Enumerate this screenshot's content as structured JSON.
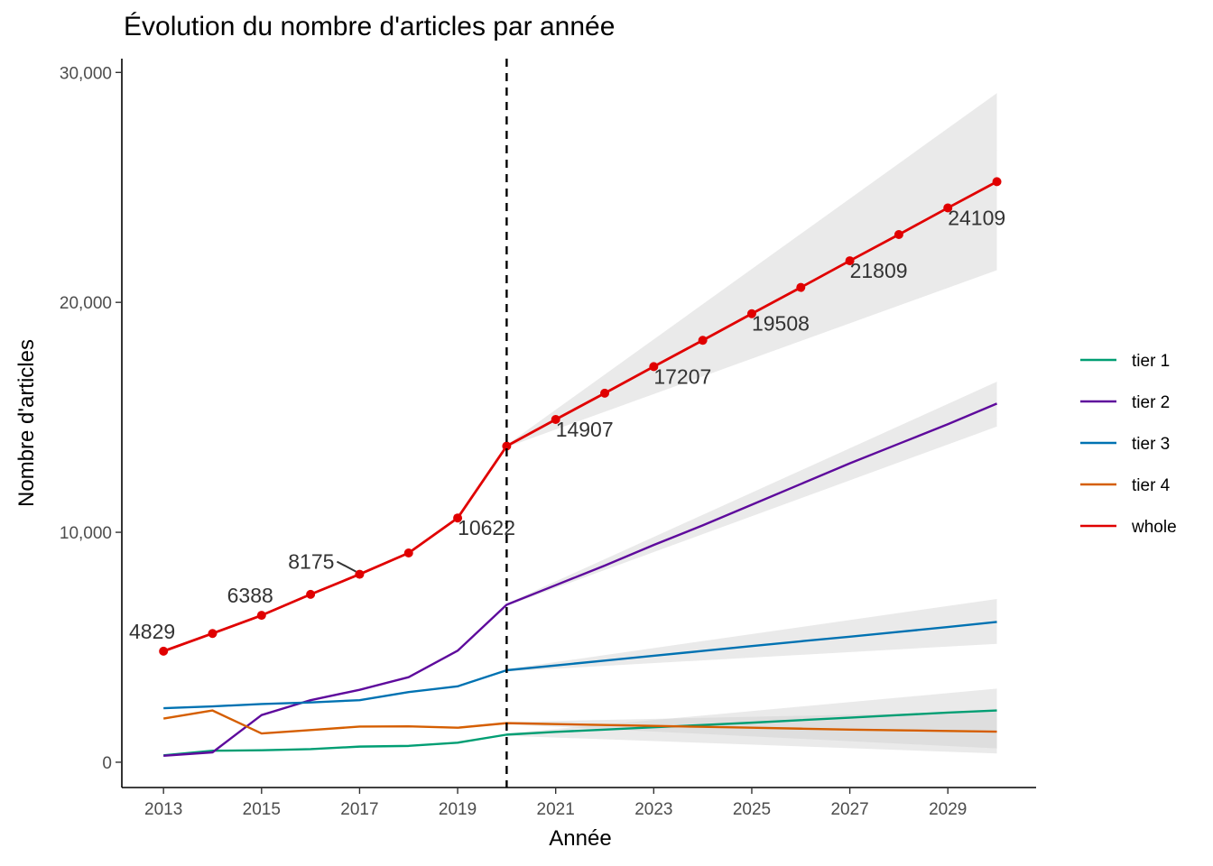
{
  "chart_data": {
    "type": "line",
    "title": "Évolution du nombre d'articles par année",
    "xlabel": "Année",
    "ylabel": "Nombre d'articles",
    "xlim": [
      2012.15,
      2030.8
    ],
    "ylim": [
      -1100,
      30600
    ],
    "x_ticks": [
      2013,
      2015,
      2017,
      2019,
      2021,
      2023,
      2025,
      2027,
      2029
    ],
    "x_tick_labels": [
      "2013",
      "2015",
      "2017",
      "2019",
      "2021",
      "2023",
      "2025",
      "2027",
      "2029"
    ],
    "y_ticks": [
      0,
      10000,
      20000,
      30000
    ],
    "y_tick_labels": [
      "0",
      "10,000",
      "20,000",
      "30,000"
    ],
    "vline_x": 2020,
    "grid": false,
    "legend_position": "right",
    "series": [
      {
        "name": "tier 1",
        "color": "#009e73",
        "x": [
          2013,
          2014,
          2015,
          2016,
          2017,
          2018,
          2019,
          2020,
          2021,
          2022,
          2023,
          2024,
          2025,
          2026,
          2027,
          2028,
          2029,
          2030
        ],
        "values": [
          300,
          500,
          520,
          570,
          680,
          710,
          850,
          1200,
          1320,
          1420,
          1520,
          1620,
          1720,
          1830,
          1940,
          2050,
          2160,
          2250
        ],
        "band": {
          "x": [
            2020,
            2030
          ],
          "lower": [
            1150,
            380
          ],
          "upper": [
            1250,
            3200
          ]
        }
      },
      {
        "name": "tier 2",
        "color": "#5e0a9c",
        "x": [
          2013,
          2014,
          2015,
          2016,
          2017,
          2018,
          2019,
          2020,
          2021,
          2022,
          2023,
          2024,
          2025,
          2026,
          2027,
          2028,
          2029,
          2030
        ],
        "values": [
          280,
          430,
          2050,
          2700,
          3150,
          3700,
          4850,
          6850,
          7700,
          8550,
          9450,
          10300,
          11200,
          12100,
          13000,
          13850,
          14700,
          15600
        ],
        "band": {
          "x": [
            2020,
            2030
          ],
          "lower": [
            6800,
            14600
          ],
          "upper": [
            6900,
            16550
          ]
        }
      },
      {
        "name": "tier 3",
        "color": "#0072b2",
        "x": [
          2013,
          2014,
          2015,
          2016,
          2017,
          2018,
          2019,
          2020,
          2021,
          2022,
          2023,
          2024,
          2025,
          2026,
          2027,
          2028,
          2029,
          2030
        ],
        "values": [
          2350,
          2430,
          2530,
          2600,
          2700,
          3050,
          3300,
          4000,
          4210,
          4420,
          4630,
          4840,
          5050,
          5260,
          5460,
          5670,
          5880,
          6100
        ],
        "band": {
          "x": [
            2020,
            2030
          ],
          "lower": [
            3950,
            5150
          ],
          "upper": [
            4050,
            7100
          ]
        }
      },
      {
        "name": "tier 4",
        "color": "#d55e00",
        "x": [
          2013,
          2014,
          2015,
          2016,
          2017,
          2018,
          2019,
          2020,
          2021,
          2022,
          2023,
          2024,
          2025,
          2026,
          2027,
          2028,
          2029,
          2030
        ],
        "values": [
          1900,
          2250,
          1250,
          1400,
          1550,
          1560,
          1500,
          1700,
          1660,
          1620,
          1580,
          1540,
          1500,
          1460,
          1420,
          1390,
          1360,
          1330
        ],
        "band": {
          "x": [
            2020,
            2030
          ],
          "lower": [
            1650,
            600
          ],
          "upper": [
            1750,
            2200
          ]
        }
      },
      {
        "name": "whole",
        "color": "#e00000",
        "x": [
          2013,
          2014,
          2015,
          2016,
          2017,
          2018,
          2019,
          2020,
          2021,
          2022,
          2023,
          2024,
          2025,
          2026,
          2027,
          2028,
          2029,
          2030
        ],
        "values": [
          4829,
          5600,
          6388,
          7300,
          8175,
          9100,
          10622,
          13750,
          14907,
          16050,
          17207,
          18350,
          19508,
          20650,
          21809,
          22950,
          24109,
          25250
        ],
        "band": {
          "x": [
            2020,
            2030
          ],
          "lower": [
            13700,
            21400
          ],
          "upper": [
            13800,
            29100
          ]
        }
      }
    ],
    "point_labels": [
      {
        "x": 2013,
        "value": 4829,
        "text": "4829"
      },
      {
        "x": 2015,
        "value": 6388,
        "text": "6388"
      },
      {
        "x": 2017,
        "value": 8175,
        "text": "8175"
      },
      {
        "x": 2019,
        "value": 10622,
        "text": "10622"
      },
      {
        "x": 2021,
        "value": 14907,
        "text": "14907"
      },
      {
        "x": 2023,
        "value": 17207,
        "text": "17207"
      },
      {
        "x": 2025,
        "value": 19508,
        "text": "19508"
      },
      {
        "x": 2027,
        "value": 21809,
        "text": "21809"
      },
      {
        "x": 2029,
        "value": 24109,
        "text": "24109"
      }
    ]
  }
}
